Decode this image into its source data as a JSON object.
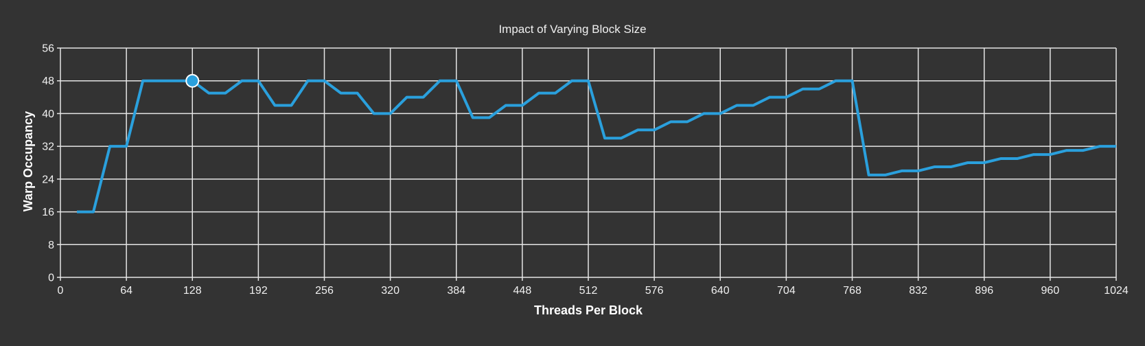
{
  "chart_data": {
    "type": "line",
    "title": "Impact of Varying Block Size",
    "xlabel": "Threads Per Block",
    "ylabel": "Warp Occupancy",
    "xlim": [
      0,
      1024
    ],
    "ylim": [
      0,
      56
    ],
    "xticks": [
      0,
      64,
      128,
      192,
      256,
      320,
      384,
      448,
      512,
      576,
      640,
      704,
      768,
      832,
      896,
      960,
      1024
    ],
    "yticks": [
      0,
      8,
      16,
      24,
      32,
      40,
      48,
      56
    ],
    "grid": true,
    "colors": {
      "background": "#333333",
      "line": "#2aa0dd",
      "grid": "#e6e6e6",
      "marker_fill": "#2aa0dd",
      "marker_stroke": "#ffffff"
    },
    "series": [
      {
        "x": [
          16,
          32,
          48,
          64,
          80,
          96,
          112,
          128,
          144,
          160,
          176,
          192,
          208,
          224,
          240,
          256,
          272,
          288,
          304,
          320,
          336,
          352,
          368,
          384,
          400,
          416,
          432,
          448,
          464,
          480,
          496,
          512,
          528,
          544,
          560,
          576,
          592,
          608,
          624,
          640,
          656,
          672,
          688,
          704,
          720,
          736,
          752,
          768,
          784,
          800,
          816,
          832,
          848,
          864,
          880,
          896,
          912,
          928,
          944,
          960,
          976,
          992,
          1008,
          1024
        ],
        "y": [
          16,
          16,
          32,
          32,
          48,
          48,
          48,
          48,
          45,
          45,
          48,
          48,
          42,
          42,
          48,
          48,
          45,
          45,
          40,
          40,
          44,
          44,
          48,
          48,
          39,
          39,
          42,
          42,
          45,
          45,
          48,
          48,
          34,
          34,
          36,
          36,
          38,
          38,
          40,
          40,
          42,
          42,
          44,
          44,
          46,
          46,
          48,
          48,
          25,
          25,
          26,
          26,
          27,
          27,
          28,
          28,
          29,
          29,
          30,
          30,
          31,
          31,
          32,
          32
        ]
      }
    ],
    "highlight": {
      "x": 128,
      "y": 48
    }
  }
}
